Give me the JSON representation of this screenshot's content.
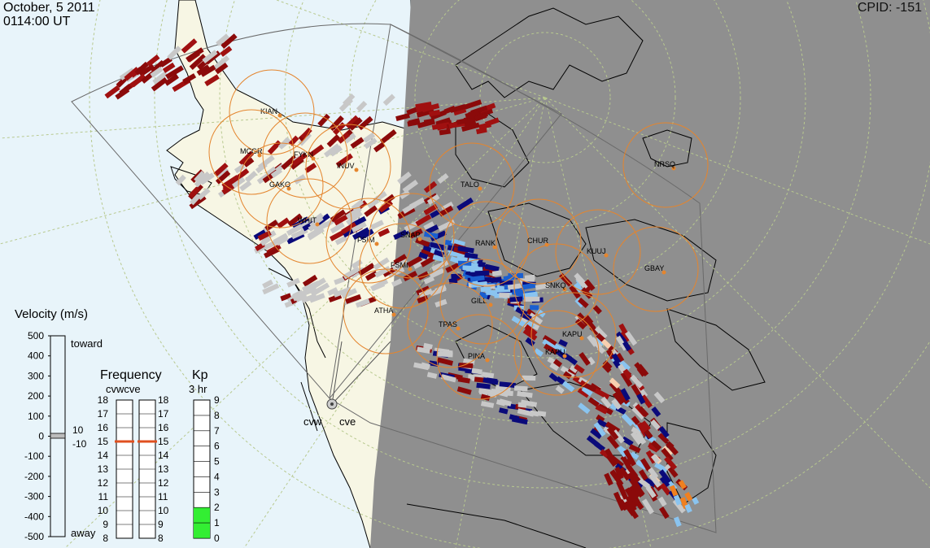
{
  "header": {
    "date": "October, 5 2011",
    "time": "0114:00 UT",
    "cpid": "CPID:  -151"
  },
  "colors": {
    "ocean": "#e8f4fa",
    "land": "#f7f6e4",
    "night": "#8f8f8f",
    "grid": "#b8c98f",
    "fov": "#6a6a6a",
    "coast": "#000000",
    "circle": "#e4852e",
    "kp_bar": "#33ee33",
    "freq_marker": "#e05020"
  },
  "stations": [
    {
      "code": "KIAN"
    },
    {
      "code": "MCGR"
    },
    {
      "code": "FYKN"
    },
    {
      "code": "INUV"
    },
    {
      "code": "GAKO"
    },
    {
      "code": "TALO"
    },
    {
      "code": "NRSQ"
    },
    {
      "code": "WHIT"
    },
    {
      "code": "FSIM"
    },
    {
      "code": "SNAP"
    },
    {
      "code": "RANK"
    },
    {
      "code": "CHUR"
    },
    {
      "code": "KUUJ"
    },
    {
      "code": "GBAY"
    },
    {
      "code": "FSMI"
    },
    {
      "code": "PINA"
    },
    {
      "code": "GILL"
    },
    {
      "code": "ATHA"
    },
    {
      "code": "TPAS"
    },
    {
      "code": "SNKQ"
    },
    {
      "code": "KAPU"
    },
    {
      "code": "KAPU"
    }
  ],
  "radars": [
    "cvw",
    "cve"
  ],
  "velocity_scale": {
    "title": "Velocity (m/s)",
    "ticks": [
      "500",
      "400",
      "300",
      "200",
      "100",
      "0",
      "-100",
      "-200",
      "-300",
      "-400",
      "-500"
    ],
    "toward_label": "toward",
    "away_label": "away",
    "pos_limit": "10",
    "neg_limit": "-10",
    "colors": [
      "#fde0c6",
      "#fbb175",
      "#f58a22",
      "#e85e0a",
      "#c22e05",
      "#960e05",
      "#6b0303",
      "#0a0a6a",
      "#1040b0",
      "#2a6ee0",
      "#4a9ef0",
      "#9ad0f8"
    ]
  },
  "frequency": {
    "title": "Frequency",
    "subtitle": "cvwcve",
    "left_ticks": [
      "18",
      "17",
      "16",
      "15",
      "14",
      "13",
      "12",
      "11",
      "10",
      "9",
      "8"
    ],
    "right_ticks": [
      "18",
      "17",
      "16",
      "15",
      "14",
      "13",
      "12",
      "11",
      "10",
      "9",
      "8"
    ],
    "cvw_mhz": 15,
    "cve_mhz": 15
  },
  "kp": {
    "title": "Kp",
    "subtitle": "3 hr",
    "ticks": [
      "9",
      "8",
      "7",
      "6",
      "5",
      "4",
      "3",
      "2",
      "1",
      "0"
    ],
    "value": 2
  }
}
